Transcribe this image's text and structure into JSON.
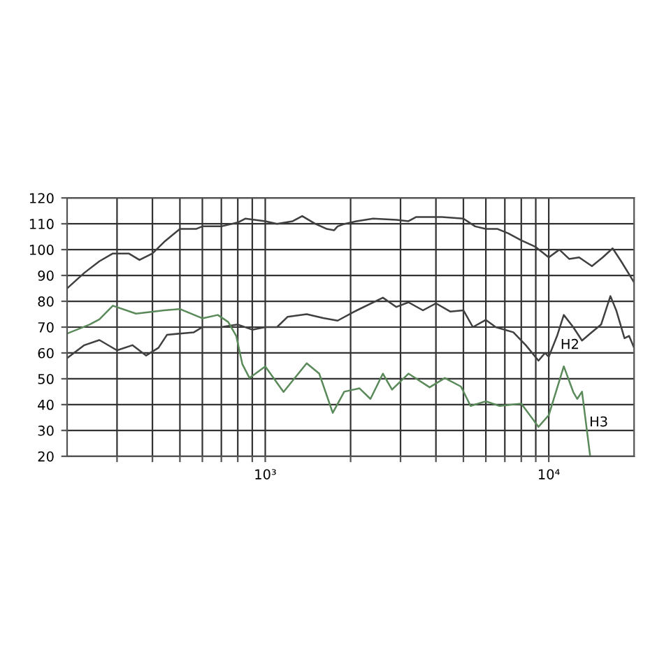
{
  "chart_data": {
    "type": "line",
    "log": "x",
    "grid": true,
    "marker": "none",
    "line_style": "solid",
    "xlim": [
      200,
      20000
    ],
    "ylim": [
      20,
      120
    ],
    "xticks": [
      {
        "value": 300,
        "label": null
      },
      {
        "value": 400,
        "label": null
      },
      {
        "value": 500,
        "label": null
      },
      {
        "value": 600,
        "label": null
      },
      {
        "value": 700,
        "label": null
      },
      {
        "value": 800,
        "label": null
      },
      {
        "value": 900,
        "label": null
      },
      {
        "value": 1000,
        "label": "10³"
      },
      {
        "value": 2000,
        "label": null
      },
      {
        "value": 3000,
        "label": null
      },
      {
        "value": 4000,
        "label": null
      },
      {
        "value": 5000,
        "label": null
      },
      {
        "value": 6000,
        "label": null
      },
      {
        "value": 7000,
        "label": null
      },
      {
        "value": 8000,
        "label": null
      },
      {
        "value": 9000,
        "label": null
      },
      {
        "value": 10000,
        "label": "10⁴"
      }
    ],
    "yticks": [
      20,
      30,
      40,
      50,
      60,
      70,
      80,
      90,
      100,
      110,
      120
    ],
    "series": [
      {
        "color": "#404040",
        "x": [
          200,
          230,
          260,
          290,
          330,
          360,
          400,
          440,
          500,
          570,
          600,
          700,
          800,
          850,
          1000,
          1100,
          1250,
          1350,
          1500,
          1650,
          1750,
          1800,
          1910,
          2100,
          2400,
          2900,
          3200,
          3400,
          4200,
          5000,
          5500,
          6000,
          6600,
          7200,
          8000,
          9000,
          10000,
          10900,
          11800,
          12800,
          14200,
          15500,
          16800,
          18000,
          20000
        ],
        "values": [
          85,
          91,
          95.5,
          98.5,
          98.5,
          96,
          98.5,
          103,
          108,
          108,
          109,
          109,
          110.5,
          112,
          111,
          110,
          111,
          113,
          110,
          108,
          107.5,
          109,
          110,
          111,
          112,
          111.5,
          111,
          112.6,
          112.6,
          112,
          109,
          108,
          108,
          106.3,
          103.6,
          101,
          97,
          100,
          96.4,
          97,
          93.6,
          97,
          100.5,
          95.5,
          87.3
        ]
      },
      {
        "color": "#404040",
        "x": [
          200,
          230,
          260,
          300,
          340,
          380,
          420,
          450,
          500,
          560,
          600,
          700,
          800,
          900,
          1000,
          1100,
          1200,
          1400,
          1600,
          1800,
          2060,
          2600,
          2900,
          3200,
          3600,
          4000,
          4500,
          5000,
          5400,
          6000,
          6500,
          7500,
          8300,
          9200,
          9700,
          10000,
          10700,
          11300,
          12200,
          13100,
          14000,
          15300,
          16500,
          17300,
          18500,
          19200,
          20000
        ],
        "values": [
          58,
          63,
          65,
          61,
          63,
          59,
          62,
          67,
          67.5,
          68,
          70,
          70,
          71,
          69,
          70,
          70,
          74,
          75,
          73.5,
          72.5,
          76,
          81.4,
          77.8,
          79.6,
          76.5,
          79.2,
          76,
          76.5,
          70,
          72.8,
          70,
          68,
          63,
          57,
          60,
          58.5,
          66.6,
          74.7,
          70,
          64.8,
          67.5,
          71,
          82,
          76.5,
          65.7,
          66.6,
          62
        ]
      },
      {
        "color": "#5a8a5a",
        "x": [
          200,
          240,
          260,
          290,
          350,
          440,
          500,
          600,
          680,
          740,
          790,
          830,
          880,
          1000,
          1160,
          1400,
          1550,
          1730,
          1900,
          2150,
          2350,
          2600,
          2800,
          3200,
          3800,
          4300,
          4900,
          5300,
          6000,
          6700,
          8000,
          9200,
          10000,
          11300,
          12200,
          12600,
          13100,
          14000
        ],
        "values": [
          67.5,
          71,
          73,
          78.3,
          75.2,
          76.5,
          77,
          73.4,
          74.7,
          72,
          66.6,
          55.7,
          50.3,
          54.8,
          44.9,
          56,
          52,
          36.8,
          45,
          46.3,
          42.2,
          52,
          45.8,
          52,
          46.7,
          50.3,
          47,
          39.5,
          41.3,
          39.5,
          40.4,
          31.4,
          35.9,
          54.8,
          44.9,
          42.2,
          45,
          20
        ]
      }
    ],
    "annotations": [
      {
        "text": "H2",
        "x": 11000,
        "y": 63
      },
      {
        "text": "H3",
        "x": 13900,
        "y": 33
      }
    ]
  }
}
